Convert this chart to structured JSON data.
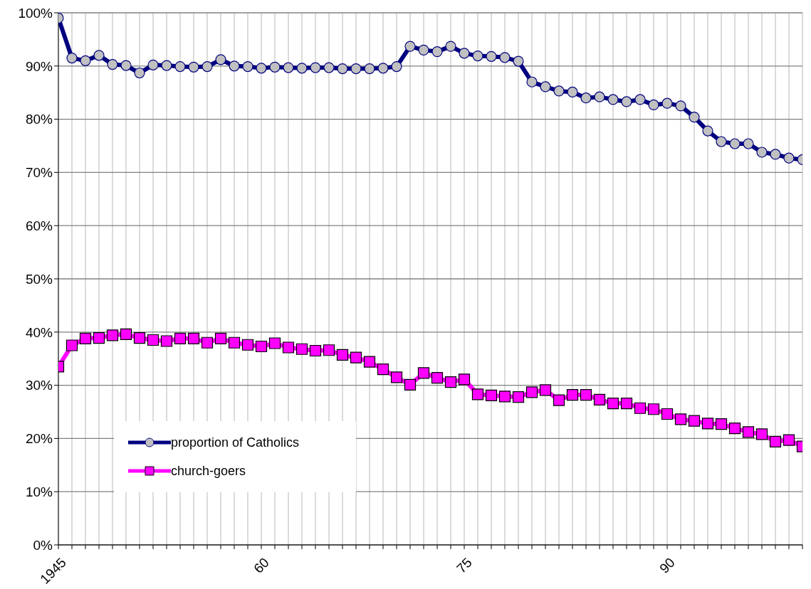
{
  "chart_data": {
    "type": "line",
    "categories": [
      "1945",
      null,
      null,
      null,
      null,
      null,
      null,
      null,
      null,
      null,
      null,
      null,
      null,
      null,
      null,
      "60",
      null,
      null,
      null,
      null,
      null,
      null,
      null,
      null,
      null,
      null,
      null,
      null,
      null,
      null,
      "75",
      null,
      null,
      null,
      null,
      null,
      null,
      null,
      null,
      null,
      null,
      null,
      null,
      null,
      null,
      "90",
      null,
      null,
      null,
      null,
      null,
      null,
      null,
      null,
      null,
      null
    ],
    "series": [
      {
        "name": "proportion of Catholics",
        "color": "#000080",
        "marker": "circle",
        "values": [
          99,
          91.5,
          91,
          92,
          90.3,
          90.1,
          88.7,
          90.2,
          90.1,
          89.9,
          89.8,
          89.9,
          91.2,
          90,
          89.9,
          89.6,
          89.8,
          89.7,
          89.6,
          89.7,
          89.7,
          89.5,
          89.5,
          89.5,
          89.6,
          89.9,
          93.7,
          93,
          92.7,
          93.7,
          92.4,
          91.9,
          91.8,
          91.6,
          90.9,
          87,
          86.1,
          85.3,
          85.1,
          84,
          84.2,
          83.7,
          83.3,
          83.7,
          82.7,
          83,
          82.5,
          80.4,
          77.8,
          75.8,
          75.4,
          75.4,
          73.8,
          73.4,
          72.7,
          72.4
        ]
      },
      {
        "name": "church-goers",
        "color": "#ff00ff",
        "marker": "square",
        "values": [
          33.5,
          37.5,
          38.8,
          38.9,
          39.4,
          39.6,
          38.9,
          38.5,
          38.3,
          38.8,
          38.8,
          38,
          38.8,
          38,
          37.6,
          37.3,
          37.9,
          37.1,
          36.8,
          36.5,
          36.6,
          35.7,
          35.2,
          34.4,
          33,
          31.5,
          30.1,
          32.3,
          31.4,
          30.6,
          31.1,
          28.3,
          28.1,
          27.9,
          27.8,
          28.7,
          29.1,
          27.2,
          28.2,
          28.2,
          27.3,
          26.6,
          26.6,
          25.7,
          25.5,
          24.6,
          23.6,
          23.3,
          22.8,
          22.7,
          21.9,
          21.2,
          20.8,
          19.4,
          19.7,
          18.5
        ]
      }
    ],
    "ylim": [
      0,
      100
    ],
    "yticks": [
      {
        "value": 0,
        "label": "0%"
      },
      {
        "value": 10,
        "label": "10%"
      },
      {
        "value": 20,
        "label": "20%"
      },
      {
        "value": 30,
        "label": "30%"
      },
      {
        "value": 40,
        "label": "40%"
      },
      {
        "value": 50,
        "label": "50%"
      },
      {
        "value": 60,
        "label": "60%"
      },
      {
        "value": 70,
        "label": "70%"
      },
      {
        "value": 80,
        "label": "80%"
      },
      {
        "value": 90,
        "label": "90%"
      },
      {
        "value": 100,
        "label": "100%"
      }
    ],
    "grid": true,
    "legend": "bottom left",
    "line_style": "solid"
  }
}
